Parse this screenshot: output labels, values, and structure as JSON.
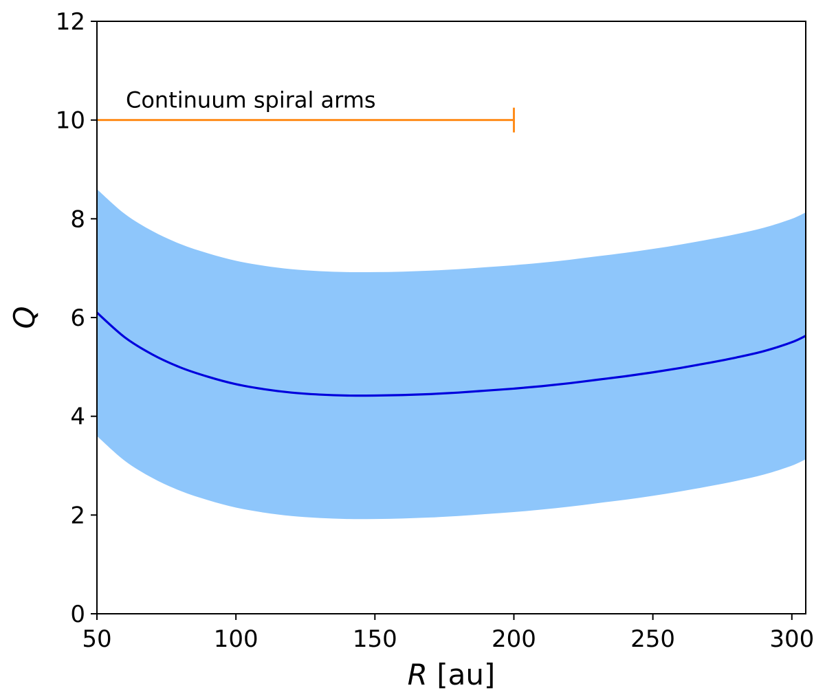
{
  "chart_data": {
    "type": "line",
    "title": "",
    "xlabel_var": "R",
    "xlabel_unit": " [au]",
    "ylabel": "Q",
    "xlim": [
      50,
      305
    ],
    "ylim": [
      0,
      12
    ],
    "x_ticks": [
      50,
      100,
      150,
      200,
      250,
      300
    ],
    "y_ticks": [
      0,
      2,
      4,
      6,
      8,
      10,
      12
    ],
    "grid": false,
    "x": [
      50,
      60,
      70,
      80,
      90,
      100,
      110,
      120,
      130,
      140,
      150,
      160,
      170,
      180,
      190,
      200,
      210,
      220,
      230,
      240,
      250,
      260,
      270,
      280,
      290,
      300,
      305
    ],
    "series": [
      {
        "values": [
          6.1,
          5.6,
          5.25,
          4.99,
          4.8,
          4.65,
          4.55,
          4.48,
          4.44,
          4.42,
          4.42,
          4.43,
          4.45,
          4.48,
          4.52,
          4.56,
          4.61,
          4.67,
          4.74,
          4.81,
          4.89,
          4.98,
          5.08,
          5.19,
          5.32,
          5.5,
          5.63
        ],
        "lower": [
          3.6,
          3.1,
          2.75,
          2.49,
          2.3,
          2.15,
          2.05,
          1.98,
          1.94,
          1.92,
          1.92,
          1.93,
          1.95,
          1.98,
          2.02,
          2.06,
          2.11,
          2.17,
          2.24,
          2.31,
          2.39,
          2.48,
          2.58,
          2.69,
          2.82,
          3.0,
          3.13
        ],
        "upper": [
          8.6,
          8.1,
          7.75,
          7.49,
          7.3,
          7.15,
          7.05,
          6.98,
          6.94,
          6.92,
          6.92,
          6.93,
          6.95,
          6.98,
          7.02,
          7.06,
          7.11,
          7.17,
          7.24,
          7.31,
          7.39,
          7.48,
          7.58,
          7.69,
          7.82,
          8.0,
          8.13
        ],
        "line_color": "#0000dd",
        "band_color": "#8ec6fb"
      }
    ],
    "annotation": {
      "text": "Continuum spiral arms",
      "x_start": 50,
      "x_end": 200,
      "y": 10,
      "color": "#ff8c1a"
    }
  }
}
